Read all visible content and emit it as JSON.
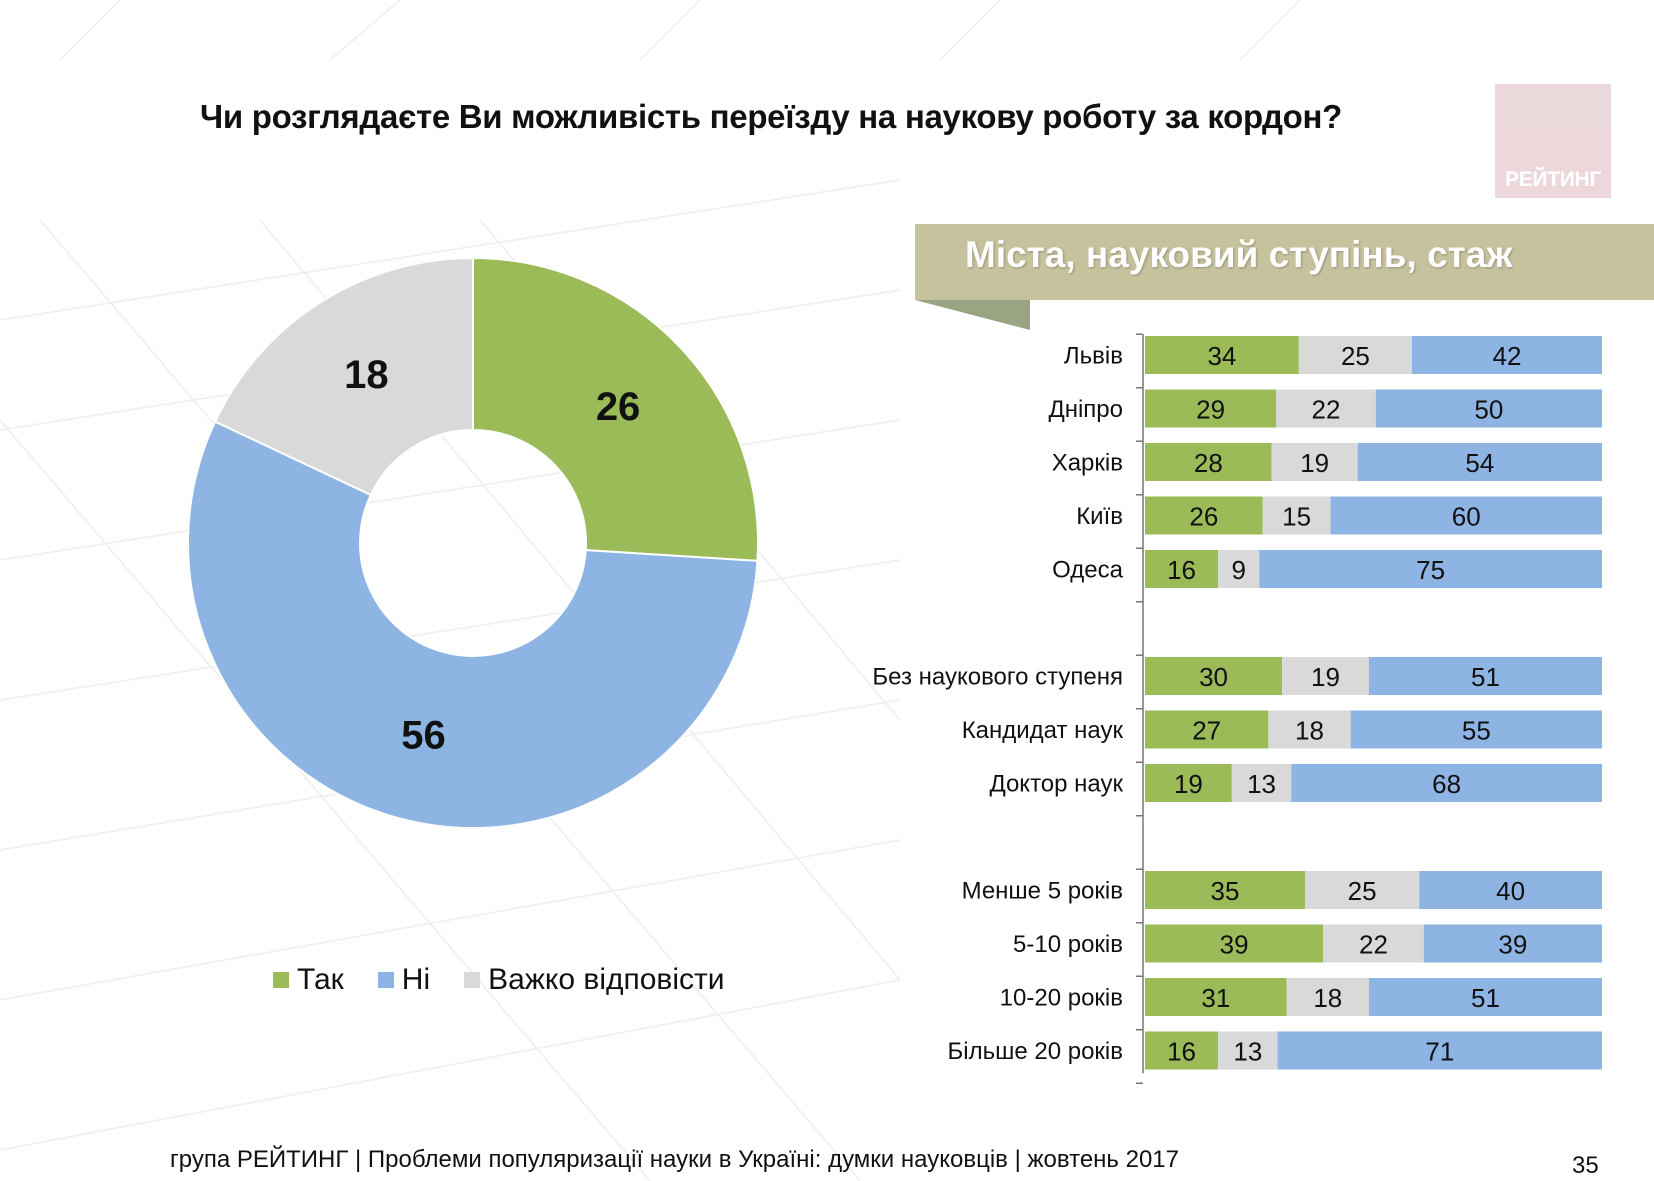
{
  "title": "Чи розглядаєте Ви можливість переїзду на наукову роботу за кордон?",
  "logo_text": "РЕЙТИНГ",
  "section_title": "Міста, науковий ступінь, стаж",
  "footer": "група РЕЙТИНГ | Проблеми популяризації науки в Україні: думки науковців | жовтень 2017",
  "page_number": "35",
  "colors": {
    "yes": "#9bbb59",
    "no": "#8eb4e3",
    "hard": "#d9d9d9",
    "banner": "#c7c29e",
    "banner_fold": "#9aa382"
  },
  "legend": [
    {
      "label": "Так",
      "color": "#9bbb59"
    },
    {
      "label": "Ні",
      "color": "#8eb4e3"
    },
    {
      "label": "Важко відповісти",
      "color": "#d9d9d9"
    }
  ],
  "chart_data": [
    {
      "type": "pie",
      "categories": [
        "Так",
        "Ні",
        "Важко відповісти"
      ],
      "values": [
        26,
        56,
        18
      ],
      "colors": [
        "#9bbb59",
        "#8eb4e3",
        "#d9d9d9"
      ],
      "legend": "bottom"
    },
    {
      "type": "bar",
      "orientation": "horizontal",
      "stacked": true,
      "categories": [
        "Львів",
        "Дніпро",
        "Харків",
        "Київ",
        "Одеса",
        "Без наукового ступеня",
        "Кандидат наук",
        "Доктор наук",
        "Менше 5 років",
        "5-10 років",
        "10-20 років",
        "Більше 20 років"
      ],
      "groups": [
        [
          "Львів",
          "Дніпро",
          "Харків",
          "Київ",
          "Одеса"
        ],
        [
          "Без наукового ступеня",
          "Кандидат наук",
          "Доктор наук"
        ],
        [
          "Менше 5 років",
          "5-10 років",
          "10-20 років",
          "Більше 20 років"
        ]
      ],
      "series": [
        {
          "name": "Так",
          "color": "#9bbb59",
          "values": [
            34,
            29,
            28,
            26,
            16,
            30,
            27,
            19,
            35,
            39,
            31,
            16
          ]
        },
        {
          "name": "Важко відповісти",
          "color": "#d9d9d9",
          "values": [
            25,
            22,
            19,
            15,
            9,
            19,
            18,
            13,
            25,
            22,
            18,
            13
          ]
        },
        {
          "name": "Ні",
          "color": "#8eb4e3",
          "values": [
            42,
            50,
            54,
            60,
            75,
            51,
            55,
            68,
            40,
            39,
            51,
            71
          ]
        }
      ],
      "grid": false
    }
  ]
}
